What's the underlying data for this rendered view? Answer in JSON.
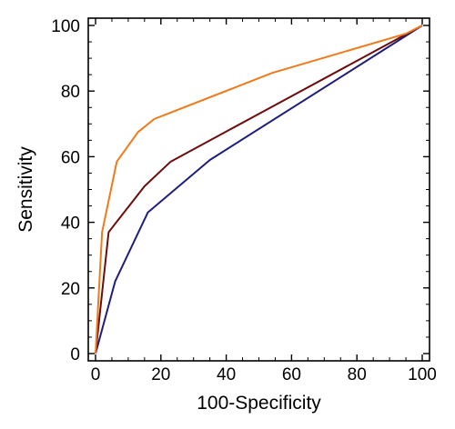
{
  "chart_data": {
    "type": "line",
    "xlabel": "100-Specificity",
    "ylabel": "Sensitivity",
    "xlim": [
      0,
      100
    ],
    "ylim": [
      0,
      100
    ],
    "x_ticks": [
      0,
      20,
      40,
      60,
      80,
      100
    ],
    "y_ticks": [
      0,
      20,
      40,
      60,
      80,
      100
    ],
    "grid": false,
    "series": [
      {
        "color": "#1f1f7a",
        "points": [
          [
            0,
            0
          ],
          [
            6,
            22
          ],
          [
            16,
            43
          ],
          [
            35,
            59
          ],
          [
            100,
            100
          ]
        ]
      },
      {
        "color": "#6b0d0d",
        "points": [
          [
            0,
            0
          ],
          [
            4,
            37
          ],
          [
            15,
            51
          ],
          [
            23,
            58.5
          ],
          [
            100,
            100
          ]
        ]
      },
      {
        "color": "#f07a1a",
        "points": [
          [
            0,
            0
          ],
          [
            2,
            37
          ],
          [
            6.5,
            58.5
          ],
          [
            13,
            67.5
          ],
          [
            18,
            71.5
          ],
          [
            54,
            85.5
          ],
          [
            95,
            97.5
          ],
          [
            100,
            100
          ]
        ]
      }
    ]
  }
}
